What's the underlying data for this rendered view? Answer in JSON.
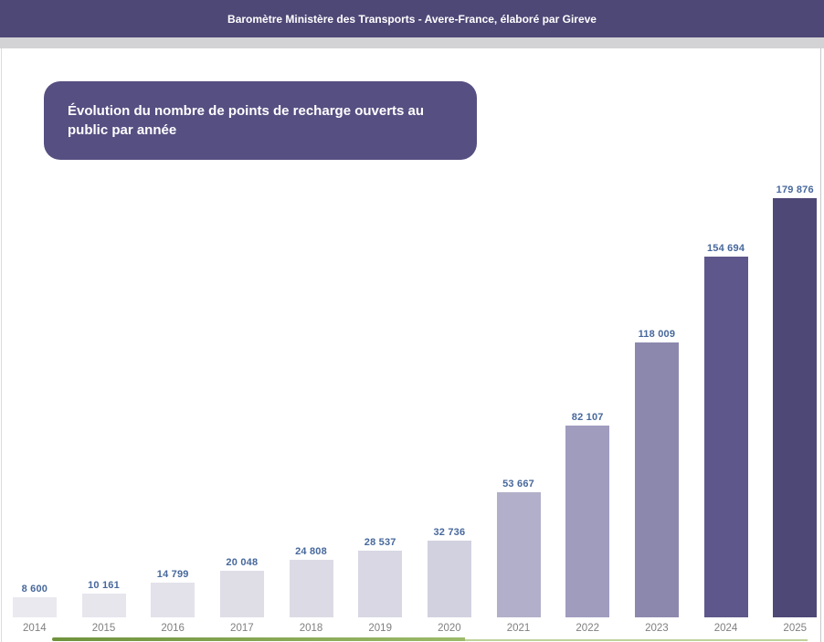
{
  "header": {
    "title": "Baromètre Ministère des Transports - Avere-France, élaboré par Gireve",
    "bar_color": "#4e4877"
  },
  "chart": {
    "title_lines": [
      "Évolution du nombre de points de recharge ouverts au",
      "public par année"
    ],
    "title_box_color": "#564f82"
  },
  "chart_data": {
    "type": "bar",
    "title": "Évolution du nombre de points de recharge ouverts au public par année",
    "categories": [
      "2014",
      "2015",
      "2016",
      "2017",
      "2018",
      "2019",
      "2020",
      "2021",
      "2022",
      "2023",
      "2024",
      "2025"
    ],
    "values": [
      8600,
      10161,
      14799,
      20048,
      24808,
      28537,
      32736,
      53667,
      82107,
      118009,
      154694,
      179876
    ],
    "value_labels": [
      "8 600",
      "10 161",
      "14 799",
      "20 048",
      "24 808",
      "28 537",
      "32 736",
      "53 667",
      "82 107",
      "118 009",
      "154 694",
      "179 876"
    ],
    "xlabel": "",
    "ylabel": "",
    "ylim": [
      0,
      179876
    ],
    "grid": false,
    "legend": false,
    "bar_colors": [
      "#eae9ef",
      "#e7e6ed",
      "#e3e2ea",
      "#dfdee7",
      "#dcdbe5",
      "#d8d7e3",
      "#d2d1df",
      "#b2afca",
      "#a09cbe",
      "#8c88ad",
      "#5e578b",
      "#4e4877"
    ],
    "label_color": "#47689c",
    "axis_label_color": "#7f7f7f"
  },
  "footer": {
    "green_bar_color_left": "#6f923c",
    "green_bar_color_right": "#9cba69",
    "green_line_color": "#bed39a"
  }
}
